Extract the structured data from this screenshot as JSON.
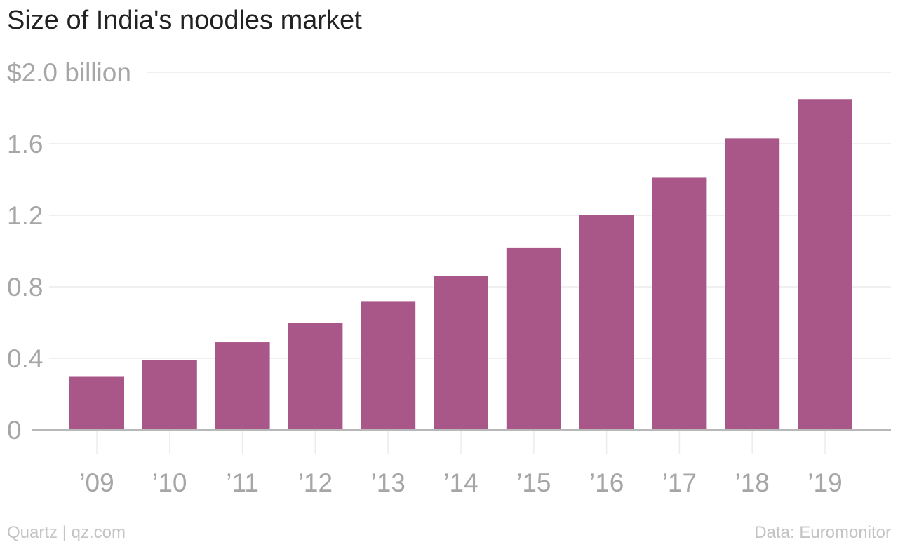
{
  "chart_data": {
    "type": "bar",
    "title": "Size of India's noodles market",
    "categories": [
      "’09",
      "’10",
      "’11",
      "’12",
      "’13",
      "’14",
      "’15",
      "’16",
      "’17",
      "’18",
      "’19"
    ],
    "values": [
      0.3,
      0.39,
      0.49,
      0.6,
      0.72,
      0.86,
      1.02,
      1.2,
      1.41,
      1.63,
      1.85
    ],
    "ylim": [
      0,
      2.0
    ],
    "y_ticks": [
      {
        "value": 0,
        "label": "0"
      },
      {
        "value": 0.4,
        "label": "0.4"
      },
      {
        "value": 0.8,
        "label": "0.8"
      },
      {
        "value": 1.2,
        "label": "1.2"
      },
      {
        "value": 1.6,
        "label": "1.6"
      },
      {
        "value": 2.0,
        "label": "$2.0 billion"
      }
    ],
    "grid": true,
    "bar_color": "#a85788",
    "grid_color": "#ececec",
    "axis_color": "#b8b8b8",
    "tick_label_color": "#a6a6a6"
  },
  "footer": {
    "left": "Quartz | qz.com",
    "right": "Data: Euromonitor"
  }
}
